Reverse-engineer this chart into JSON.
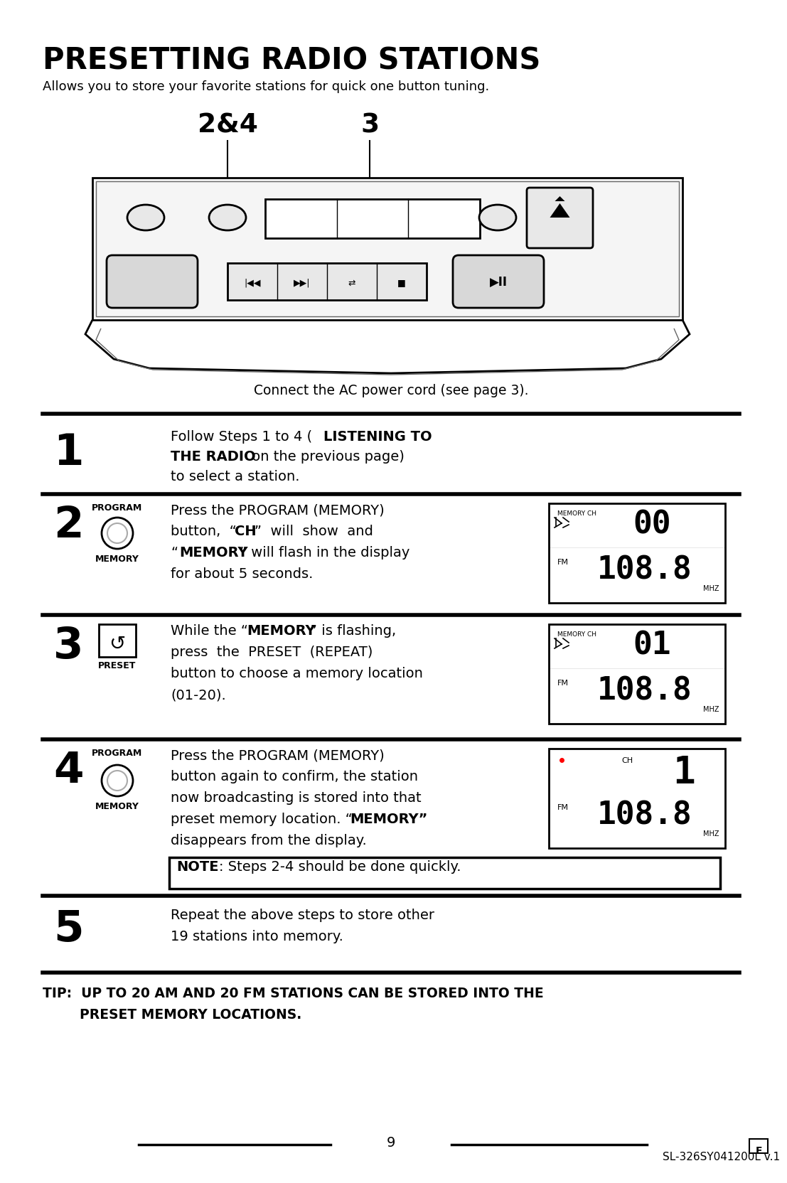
{
  "title": "PRESETTING RADIO STATIONS",
  "subtitle": "Allows you to store your favorite stations for quick one button tuning.",
  "bg_color": "#ffffff",
  "text_color": "#000000",
  "label_24": "2&4",
  "label_3": "3",
  "connect_text": "Connect the AC power cord (see page 3).",
  "step1_num": "1",
  "step2_num": "2",
  "step2_label_top": "PROGRAM",
  "step2_label_bot": "MEMORY",
  "step3_num": "3",
  "step3_label_top": "REPEAT",
  "step3_label_bot": "PRESET",
  "step4_num": "4",
  "step4_label_top": "PROGRAM",
  "step4_label_bot": "MEMORY",
  "step5_num": "5",
  "footer_page": "9",
  "footer_model": "SL-326SY041200L v.1"
}
